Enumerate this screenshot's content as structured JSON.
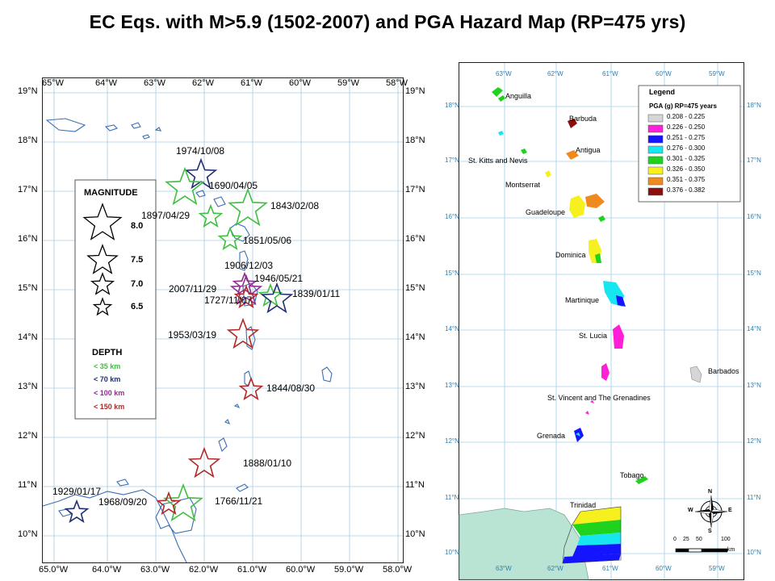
{
  "title": "EC Eqs. with M>5.9 (1502-2007) and PGA Hazard Map  (RP=475 yrs)",
  "left_map": {
    "top_ticks": [
      "65°W",
      "64°W",
      "63°W",
      "62°W",
      "61°W",
      "60°W",
      "59°W",
      "58°W"
    ],
    "bottom_ticks": [
      "65.0°W",
      "64.0°W",
      "63.0°W",
      "62.0°W",
      "61.0°W",
      "60.0°W",
      "59.0°W",
      "58.0°W"
    ],
    "lat_ticks": [
      "19°N",
      "18°N",
      "17°N",
      "16°N",
      "15°N",
      "14°N",
      "13°N",
      "12°N",
      "11°N",
      "10°N"
    ],
    "legend": {
      "magnitude_title": "MAGNITUDE",
      "magnitudes": [
        "8.0",
        "7.5",
        "7.0",
        "6.5"
      ],
      "depth_title": "DEPTH",
      "depths": [
        {
          "label": "< 35 km",
          "color": "#3fbf3f"
        },
        {
          "label": "< 70 km",
          "color": "#1f2f6f"
        },
        {
          "label": "< 100 km",
          "color": "#8e2f8e"
        },
        {
          "label": "< 150 km",
          "color": "#b02a2a"
        }
      ]
    },
    "earthquakes": [
      {
        "date": "1974/10/08",
        "magnitude": 7.5,
        "depth": "< 70 km"
      },
      {
        "date": "1690/04/05",
        "magnitude": 8.0,
        "depth": "< 35 km"
      },
      {
        "date": "1843/02/08",
        "magnitude": 8.0,
        "depth": "< 35 km"
      },
      {
        "date": "1897/04/29",
        "magnitude": 7.0,
        "depth": "< 35 km"
      },
      {
        "date": "1851/05/06",
        "magnitude": 7.0,
        "depth": "< 35 km"
      },
      {
        "date": "1906/12/03",
        "magnitude": 7.0,
        "depth": "< 100 km"
      },
      {
        "date": "1946/05/21",
        "magnitude": 7.0,
        "depth": "< 35 km"
      },
      {
        "date": "2007/11/29",
        "magnitude": 7.5,
        "depth": "< 100 km"
      },
      {
        "date": "1727/11/07",
        "magnitude": 7.0,
        "depth": "< 150 km"
      },
      {
        "date": "1839/01/11",
        "magnitude": 7.5,
        "depth": "< 70 km"
      },
      {
        "date": "1953/03/19",
        "magnitude": 7.5,
        "depth": "< 150 km"
      },
      {
        "date": "1844/08/30",
        "magnitude": 7.0,
        "depth": "< 150 km"
      },
      {
        "date": "1888/01/10",
        "magnitude": 7.5,
        "depth": "< 150 km"
      },
      {
        "date": "1766/11/21",
        "magnitude": 8.0,
        "depth": "< 35 km"
      },
      {
        "date": "1968/09/20",
        "magnitude": 7.0,
        "depth": "< 150 km"
      },
      {
        "date": "1929/01/17",
        "magnitude": 7.0,
        "depth": "< 70 km"
      }
    ]
  },
  "right_map": {
    "lon_ticks": [
      "63°W",
      "62°W",
      "61°W",
      "60°W",
      "59°W"
    ],
    "lat_ticks": [
      "18°N",
      "17°N",
      "16°N",
      "15°N",
      "14°N",
      "13°N",
      "12°N",
      "11°N",
      "10°N"
    ],
    "legend": {
      "title": "Legend",
      "subtitle": "PGA (g) RP=475 years",
      "classes": [
        {
          "range": "0.208 - 0.225",
          "color": "#d6d6d6"
        },
        {
          "range": "0.226 - 0.250",
          "color": "#ff1fd6"
        },
        {
          "range": "0.251 - 0.275",
          "color": "#1414ff"
        },
        {
          "range": "0.276 - 0.300",
          "color": "#16e6f0"
        },
        {
          "range": "0.301 - 0.325",
          "color": "#1ed21e"
        },
        {
          "range": "0.326 - 0.350",
          "color": "#f6f01e"
        },
        {
          "range": "0.351 - 0.375",
          "color": "#f08a1e"
        },
        {
          "range": "0.376 - 0.382",
          "color": "#8c0f0f"
        }
      ]
    },
    "islands": [
      {
        "name": "Anguilla"
      },
      {
        "name": "Barbuda"
      },
      {
        "name": "St. Kitts and Nevis"
      },
      {
        "name": "Antigua"
      },
      {
        "name": "Montserrat"
      },
      {
        "name": "Guadeloupe"
      },
      {
        "name": "Dominica"
      },
      {
        "name": "Martinique"
      },
      {
        "name": "St. Lucia"
      },
      {
        "name": "Barbados"
      },
      {
        "name": "St. Vincent and The Grenadines"
      },
      {
        "name": "Grenada"
      },
      {
        "name": "Tobago"
      },
      {
        "name": "Trinidad"
      }
    ],
    "compass": {
      "n": "N",
      "s": "S",
      "e": "E",
      "w": "W"
    },
    "scale": {
      "labels": [
        "0",
        "25",
        "50",
        "100"
      ],
      "unit": "km"
    }
  }
}
